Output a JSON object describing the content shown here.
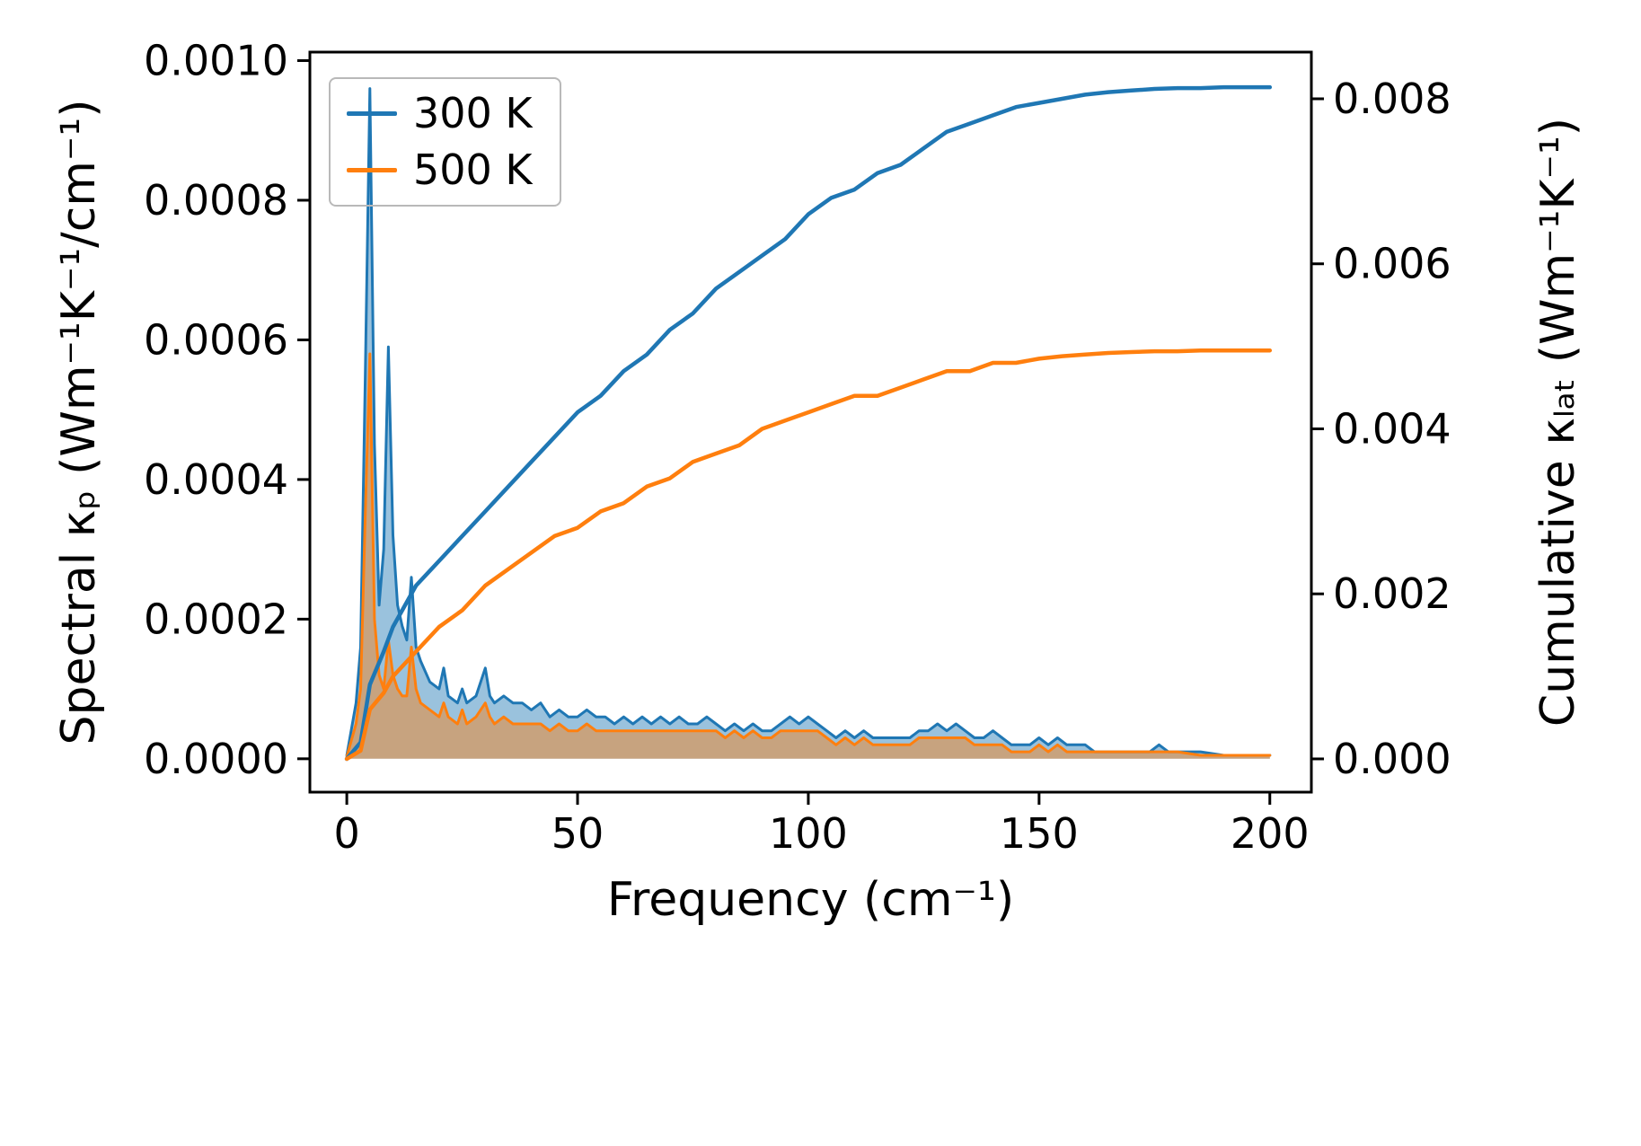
{
  "chart_data": {
    "type": "line",
    "title": "",
    "xlabel": "Frequency (cm⁻¹)",
    "ylabel_left": "Spectral κₚ (Wm⁻¹K⁻¹/cm⁻¹)",
    "ylabel_right": "Cumulative κₗₐₜ (Wm⁻¹K⁻¹)",
    "grid": false,
    "legend": {
      "position": "upper left",
      "labels": [
        "300 K",
        "500 K"
      ]
    },
    "colors": {
      "series_300K": "#1f77b4",
      "series_500K": "#ff7f0e",
      "fill_alpha": 0.45,
      "axes": "#000000",
      "legend_border": "#b9b9b9"
    },
    "xlim": [
      -8,
      209
    ],
    "ylim_left": [
      -4.78e-05,
      0.0010122
    ],
    "ylim_right": [
      -0.000403,
      0.008566
    ],
    "x_ticks": {
      "values": [
        0,
        50,
        100,
        150,
        200
      ],
      "labels": [
        "0",
        "50",
        "100",
        "150",
        "200"
      ]
    },
    "y_ticks_left": {
      "values": [
        0,
        0.0002,
        0.0004,
        0.0006,
        0.0008,
        0.001
      ],
      "labels": [
        "0.0000",
        "0.0002",
        "0.0004",
        "0.0006",
        "0.0008",
        "0.0010"
      ]
    },
    "y_ticks_right": {
      "values": [
        0,
        0.002,
        0.004,
        0.006,
        0.008
      ],
      "labels": [
        "0.000",
        "0.002",
        "0.004",
        "0.006",
        "0.008"
      ]
    },
    "spectral": {
      "axis": "left",
      "style": "filled-line",
      "x": [
        0,
        2,
        3,
        4,
        5,
        6,
        7,
        8,
        9,
        10,
        11,
        12,
        13,
        14,
        15,
        16,
        18,
        20,
        21,
        22,
        24,
        25,
        26,
        28,
        30,
        31,
        32,
        34,
        36,
        38,
        40,
        42,
        44,
        46,
        48,
        50,
        52,
        54,
        56,
        58,
        60,
        62,
        64,
        66,
        68,
        70,
        72,
        74,
        76,
        78,
        80,
        82,
        84,
        86,
        88,
        90,
        92,
        94,
        96,
        98,
        100,
        102,
        104,
        106,
        108,
        110,
        112,
        114,
        116,
        118,
        120,
        122,
        124,
        126,
        128,
        130,
        132,
        134,
        136,
        138,
        140,
        142,
        144,
        146,
        148,
        150,
        152,
        154,
        156,
        158,
        160,
        162,
        164,
        166,
        168,
        170,
        172,
        174,
        176,
        178,
        180,
        185,
        190,
        195,
        200
      ],
      "series": [
        {
          "name": "300 K",
          "color": "#1f77b4",
          "values": [
            5e-06,
            8e-05,
            0.00016,
            0.00055,
            0.00096,
            0.00045,
            0.00022,
            0.0003,
            0.00059,
            0.00032,
            0.00022,
            0.00019,
            0.00017,
            0.00026,
            0.00016,
            0.00014,
            0.00011,
            0.0001,
            0.00013,
            9e-05,
            8e-05,
            0.0001,
            8e-05,
            9e-05,
            0.00013,
            9e-05,
            8e-05,
            9e-05,
            8e-05,
            8e-05,
            7e-05,
            8e-05,
            6e-05,
            7e-05,
            6e-05,
            6e-05,
            7e-05,
            6e-05,
            6e-05,
            5e-05,
            6e-05,
            5e-05,
            6e-05,
            5e-05,
            6e-05,
            5e-05,
            6e-05,
            5e-05,
            5e-05,
            6e-05,
            5e-05,
            4e-05,
            5e-05,
            4e-05,
            5e-05,
            4e-05,
            4e-05,
            5e-05,
            6e-05,
            5e-05,
            6e-05,
            5e-05,
            4e-05,
            3e-05,
            4e-05,
            3e-05,
            4e-05,
            3e-05,
            3e-05,
            3e-05,
            3e-05,
            3e-05,
            4e-05,
            4e-05,
            5e-05,
            4e-05,
            5e-05,
            4e-05,
            3e-05,
            3e-05,
            4e-05,
            3e-05,
            2e-05,
            2e-05,
            2e-05,
            3e-05,
            2e-05,
            3e-05,
            2e-05,
            2e-05,
            2e-05,
            1e-05,
            1e-05,
            1e-05,
            1e-05,
            1e-05,
            1e-05,
            1e-05,
            2e-05,
            1e-05,
            1e-05,
            1e-05,
            5e-06,
            5e-06,
            5e-06
          ]
        },
        {
          "name": "500 K",
          "color": "#ff7f0e",
          "values": [
            3e-06,
            5e-05,
            0.0001,
            0.00035,
            0.00058,
            0.0002,
            0.00012,
            0.0001,
            0.00017,
            0.00012,
            0.0001,
            9e-05,
            9e-05,
            0.00016,
            0.0001,
            8e-05,
            7e-05,
            6e-05,
            8e-05,
            6e-05,
            5e-05,
            7e-05,
            5e-05,
            6e-05,
            8e-05,
            6e-05,
            5e-05,
            6e-05,
            5e-05,
            5e-05,
            5e-05,
            5e-05,
            4e-05,
            5e-05,
            4e-05,
            4e-05,
            5e-05,
            4e-05,
            4e-05,
            4e-05,
            4e-05,
            4e-05,
            4e-05,
            4e-05,
            4e-05,
            4e-05,
            4e-05,
            4e-05,
            4e-05,
            4e-05,
            4e-05,
            3e-05,
            4e-05,
            3e-05,
            4e-05,
            3e-05,
            3e-05,
            4e-05,
            4e-05,
            4e-05,
            4e-05,
            4e-05,
            3e-05,
            2e-05,
            3e-05,
            2e-05,
            3e-05,
            2e-05,
            2e-05,
            2e-05,
            2e-05,
            2e-05,
            3e-05,
            3e-05,
            3e-05,
            3e-05,
            3e-05,
            3e-05,
            2e-05,
            2e-05,
            2e-05,
            2e-05,
            1e-05,
            1e-05,
            1e-05,
            2e-05,
            1e-05,
            2e-05,
            1e-05,
            1e-05,
            1e-05,
            1e-05,
            1e-05,
            1e-05,
            1e-05,
            1e-05,
            1e-05,
            1e-05,
            1e-05,
            1e-05,
            1e-05,
            5e-06,
            5e-06,
            5e-06,
            5e-06
          ]
        }
      ]
    },
    "cumulative": {
      "axis": "right",
      "style": "line",
      "x": [
        0,
        3,
        5,
        8,
        10,
        15,
        20,
        25,
        30,
        35,
        40,
        45,
        50,
        55,
        60,
        65,
        70,
        75,
        80,
        85,
        90,
        95,
        100,
        105,
        110,
        115,
        120,
        125,
        130,
        135,
        140,
        145,
        150,
        155,
        160,
        165,
        170,
        175,
        180,
        185,
        190,
        195,
        200
      ],
      "series": [
        {
          "name": "300 K",
          "color": "#1f77b4",
          "values": [
            0,
            0.0002,
            0.0009,
            0.0013,
            0.0016,
            0.0021,
            0.0024,
            0.0027,
            0.003,
            0.0033,
            0.0036,
            0.0039,
            0.0042,
            0.0044,
            0.0047,
            0.0049,
            0.0052,
            0.0054,
            0.0057,
            0.0059,
            0.0061,
            0.0063,
            0.0066,
            0.0068,
            0.0069,
            0.0071,
            0.0072,
            0.0074,
            0.0076,
            0.0077,
            0.0078,
            0.0079,
            0.00795,
            0.008,
            0.00805,
            0.00808,
            0.0081,
            0.00812,
            0.00813,
            0.00813,
            0.00814,
            0.00814,
            0.00814
          ]
        },
        {
          "name": "500 K",
          "color": "#ff7f0e",
          "values": [
            0,
            0.0001,
            0.0006,
            0.0008,
            0.001,
            0.0013,
            0.0016,
            0.0018,
            0.0021,
            0.0023,
            0.0025,
            0.0027,
            0.0028,
            0.003,
            0.0031,
            0.0033,
            0.0034,
            0.0036,
            0.0037,
            0.0038,
            0.004,
            0.0041,
            0.0042,
            0.0043,
            0.0044,
            0.0044,
            0.0045,
            0.0046,
            0.0047,
            0.0047,
            0.0048,
            0.0048,
            0.00485,
            0.00488,
            0.0049,
            0.00492,
            0.00493,
            0.00494,
            0.00494,
            0.00495,
            0.00495,
            0.00495,
            0.00495
          ]
        }
      ]
    }
  }
}
